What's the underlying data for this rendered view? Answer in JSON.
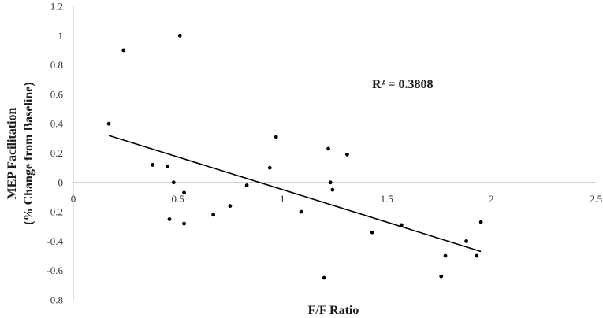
{
  "chart_data": {
    "type": "scatter",
    "xlabel": "F/F Ratio",
    "ylabel_lines": [
      "MEP Facilitation",
      "(% Change from Baseline)"
    ],
    "xlim": [
      0,
      2.5
    ],
    "ylim": [
      -0.8,
      1.2
    ],
    "x_ticks": [
      0,
      0.5,
      1,
      1.5,
      2,
      2.5
    ],
    "y_ticks": [
      -0.8,
      -0.6,
      -0.4,
      -0.2,
      0,
      0.2,
      0.4,
      0.6,
      0.8,
      1,
      1.2
    ],
    "x_tick_labels": [
      "0",
      "0.5",
      "1",
      "1.5",
      "2",
      "2.5"
    ],
    "y_tick_labels": [
      "-0.8",
      "-0.6",
      "-0.4",
      "-0.2",
      "0",
      "0.2",
      "0.4",
      "0.6",
      "0.8",
      "1",
      "1.2"
    ],
    "points": [
      {
        "x": 0.17,
        "y": 0.4
      },
      {
        "x": 0.24,
        "y": 0.9
      },
      {
        "x": 0.51,
        "y": 1.0
      },
      {
        "x": 0.38,
        "y": 0.12
      },
      {
        "x": 0.45,
        "y": 0.11
      },
      {
        "x": 0.48,
        "y": 0.0
      },
      {
        "x": 0.53,
        "y": -0.07
      },
      {
        "x": 0.46,
        "y": -0.25
      },
      {
        "x": 0.53,
        "y": -0.28
      },
      {
        "x": 0.67,
        "y": -0.22
      },
      {
        "x": 0.75,
        "y": -0.16
      },
      {
        "x": 0.83,
        "y": -0.02
      },
      {
        "x": 0.94,
        "y": 0.1
      },
      {
        "x": 0.97,
        "y": 0.31
      },
      {
        "x": 1.09,
        "y": -0.2
      },
      {
        "x": 1.22,
        "y": 0.23
      },
      {
        "x": 1.23,
        "y": 0.0
      },
      {
        "x": 1.24,
        "y": -0.05
      },
      {
        "x": 1.31,
        "y": 0.19
      },
      {
        "x": 1.2,
        "y": -0.65
      },
      {
        "x": 1.43,
        "y": -0.34
      },
      {
        "x": 1.57,
        "y": -0.29
      },
      {
        "x": 1.76,
        "y": -0.64
      },
      {
        "x": 1.78,
        "y": -0.5
      },
      {
        "x": 1.88,
        "y": -0.4
      },
      {
        "x": 1.93,
        "y": -0.5
      },
      {
        "x": 1.95,
        "y": -0.27
      }
    ],
    "trendline": {
      "x": [
        0.17,
        1.95
      ],
      "y": [
        0.32,
        -0.47
      ]
    },
    "annotation": "R² = 0.3808",
    "grid": false,
    "legend": "none"
  }
}
